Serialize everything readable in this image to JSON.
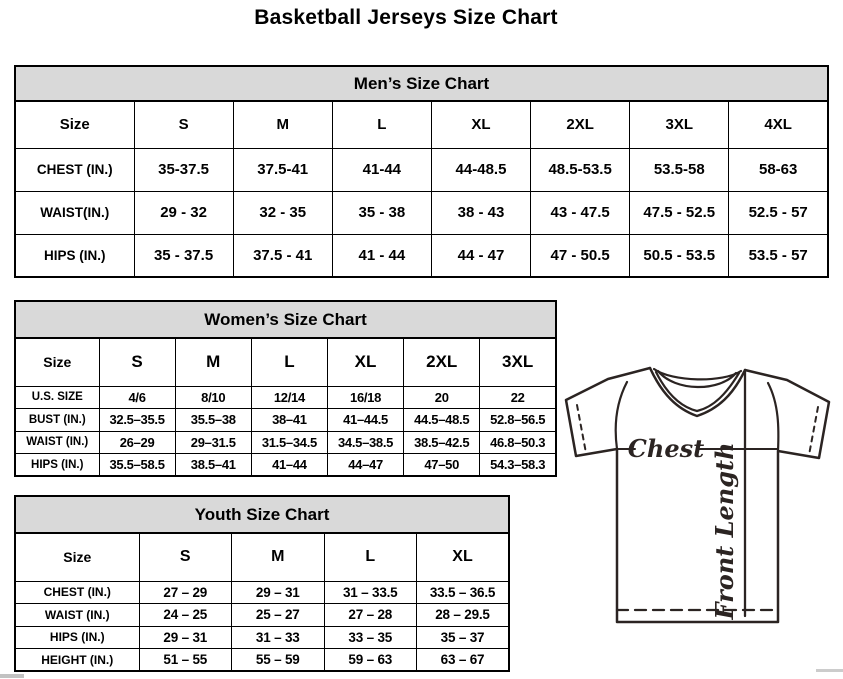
{
  "page_title": "Basketball Jerseys Size Chart",
  "tables": {
    "men": {
      "title": "Men’s Size Chart",
      "columns": [
        "Size",
        "S",
        "M",
        "L",
        "XL",
        "2XL",
        "3XL",
        "4XL"
      ],
      "rows": [
        {
          "label": "CHEST (IN.)",
          "values": [
            "35-37.5",
            "37.5-41",
            "41-44",
            "44-48.5",
            "48.5-53.5",
            "53.5-58",
            "58-63"
          ]
        },
        {
          "label": "WAIST(IN.)",
          "values": [
            "29 - 32",
            "32 - 35",
            "35 - 38",
            "38 - 43",
            "43 - 47.5",
            "47.5 - 52.5",
            "52.5 - 57"
          ]
        },
        {
          "label": "HIPS (IN.)",
          "values": [
            "35 - 37.5",
            "37.5 - 41",
            "41 - 44",
            "44 - 47",
            "47 - 50.5",
            "50.5 - 53.5",
            "53.5 - 57"
          ]
        }
      ]
    },
    "women": {
      "title": "Women’s Size Chart",
      "columns": [
        "Size",
        "S",
        "M",
        "L",
        "XL",
        "2XL",
        "3XL"
      ],
      "rows": [
        {
          "label": "U.S. SIZE",
          "values": [
            "4/6",
            "8/10",
            "12/14",
            "16/18",
            "20",
            "22"
          ]
        },
        {
          "label": "BUST (IN.)",
          "values": [
            "32.5–35.5",
            "35.5–38",
            "38–41",
            "41–44.5",
            "44.5–48.5",
            "52.8–56.5"
          ]
        },
        {
          "label": "WAIST (IN.)",
          "values": [
            "26–29",
            "29–31.5",
            "31.5–34.5",
            "34.5–38.5",
            "38.5–42.5",
            "46.8–50.3"
          ]
        },
        {
          "label": "HIPS (IN.)",
          "values": [
            "35.5–58.5",
            "38.5–41",
            "41–44",
            "44–47",
            "47–50",
            "54.3–58.3"
          ]
        }
      ]
    },
    "youth": {
      "title": "Youth Size Chart",
      "columns": [
        "Size",
        "S",
        "M",
        "L",
        "XL"
      ],
      "rows": [
        {
          "label": "CHEST (IN.)",
          "values": [
            "27 – 29",
            "29 – 31",
            "31 – 33.5",
            "33.5 – 36.5"
          ]
        },
        {
          "label": "WAIST (IN.)",
          "values": [
            "24 – 25",
            "25 – 27",
            "27 – 28",
            "28 – 29.5"
          ]
        },
        {
          "label": "HIPS (IN.)",
          "values": [
            "29 – 31",
            "31 – 33",
            "33 – 35",
            "35 – 37"
          ]
        },
        {
          "label": "HEIGHT (IN.)",
          "values": [
            "51 – 55",
            "55 – 59",
            "59 – 63",
            "63 – 67"
          ]
        }
      ]
    }
  },
  "diagram": {
    "chest_label": "Chest",
    "front_length_label": "Front Length"
  },
  "colors": {
    "table_header_bg": "#d9d9d9",
    "border": "#000000",
    "diagram_line": "#2b2422",
    "scrollbar": "#c2c2c2"
  }
}
